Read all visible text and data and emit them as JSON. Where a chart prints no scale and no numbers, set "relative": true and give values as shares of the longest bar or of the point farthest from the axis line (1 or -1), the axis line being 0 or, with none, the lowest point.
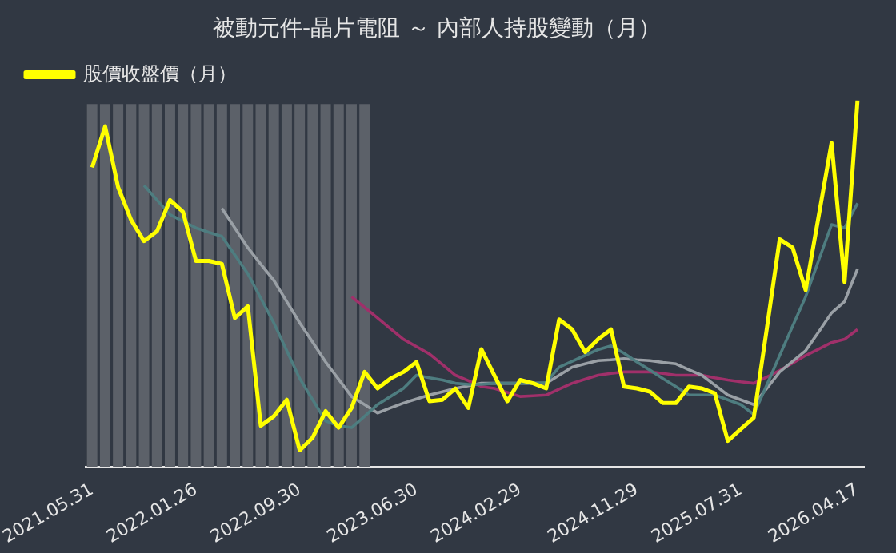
{
  "chart_data": {
    "type": "line",
    "title": "被動元件-晶片電阻 ～ 內部人持股變動（月）",
    "relative": true,
    "legend": "top left",
    "categories": [
      "2021.05.31",
      null,
      null,
      null,
      null,
      null,
      null,
      null,
      "2022.01.26",
      null,
      null,
      null,
      null,
      null,
      null,
      null,
      "2022.09.30",
      null,
      null,
      null,
      null,
      null,
      null,
      null,
      null,
      "2023.06.30",
      null,
      null,
      null,
      null,
      null,
      null,
      null,
      "2024.02.29",
      null,
      null,
      null,
      null,
      null,
      null,
      null,
      null,
      "2024.11.29",
      null,
      null,
      null,
      null,
      null,
      null,
      null,
      "2025.07.31",
      null,
      null,
      null,
      null,
      null,
      null,
      null,
      null,
      "2026.04.17"
    ],
    "series": [
      {
        "type": "bar",
        "color": "#5c6169",
        "values": [
          0.99,
          0.99,
          0.99,
          0.99,
          0.99,
          0.99,
          0.99,
          0.99,
          0.99,
          0.99,
          0.99,
          0.99,
          0.99,
          0.99,
          0.99,
          0.99,
          0.99,
          0.99,
          0.99,
          0.99,
          0.99,
          0.99,
          null,
          null,
          null,
          null,
          null,
          null,
          null,
          null,
          null,
          null,
          null,
          null,
          null,
          null,
          null,
          null,
          null,
          null,
          null,
          null,
          null,
          null,
          null,
          null,
          null,
          null,
          null,
          null,
          null,
          null,
          null,
          null,
          null,
          null,
          null,
          null,
          null,
          null
        ]
      },
      {
        "color": "#a0306a",
        "values": [
          null,
          null,
          null,
          null,
          null,
          null,
          null,
          null,
          null,
          null,
          null,
          null,
          null,
          null,
          null,
          null,
          null,
          null,
          null,
          null,
          0.464,
          0.435,
          0.406,
          0.377,
          0.348,
          0.328,
          0.308,
          0.279,
          0.25,
          0.235,
          0.219,
          0.214,
          0.203,
          0.192,
          0.194,
          0.196,
          0.212,
          0.228,
          0.239,
          0.25,
          0.255,
          0.259,
          0.259,
          0.259,
          0.255,
          0.25,
          0.25,
          0.25,
          0.243,
          0.237,
          0.232,
          0.228,
          0.245,
          0.263,
          0.283,
          0.304,
          0.321,
          0.339,
          0.348,
          0.375
        ]
      },
      {
        "color": "#9aa0a6",
        "values": [
          null,
          null,
          null,
          null,
          null,
          null,
          null,
          null,
          null,
          null,
          0.705,
          0.652,
          0.598,
          0.553,
          0.509,
          0.451,
          0.393,
          0.34,
          0.286,
          0.239,
          0.192,
          0.17,
          0.147,
          0.161,
          0.174,
          0.185,
          0.196,
          0.205,
          0.214,
          0.221,
          0.228,
          0.228,
          0.228,
          0.228,
          0.228,
          0.228,
          0.25,
          0.272,
          0.281,
          0.29,
          0.292,
          0.295,
          0.292,
          0.29,
          0.285,
          0.281,
          0.265,
          0.25,
          0.223,
          0.196,
          0.183,
          0.17,
          0.214,
          0.259,
          0.288,
          0.317,
          0.368,
          0.42,
          0.451,
          0.54
        ]
      },
      {
        "color": "#4e7d80",
        "values": [
          null,
          null,
          null,
          null,
          0.768,
          0.728,
          0.688,
          0.67,
          0.652,
          0.64,
          0.629,
          0.578,
          0.527,
          0.46,
          0.393,
          0.317,
          0.241,
          0.183,
          0.125,
          0.112,
          0.107,
          0.138,
          0.17,
          0.192,
          0.214,
          0.25,
          0.243,
          0.237,
          0.228,
          0.225,
          0.225,
          0.228,
          0.228,
          0.228,
          0.228,
          0.23,
          0.272,
          0.288,
          0.304,
          0.32,
          0.33,
          0.31,
          0.286,
          0.264,
          0.241,
          0.219,
          0.196,
          0.196,
          0.196,
          0.183,
          0.17,
          0.143,
          0.223,
          0.304,
          0.384,
          0.464,
          0.563,
          0.661,
          0.652,
          0.719
        ]
      },
      {
        "name": "股價收盤價（月）",
        "color": "#ffff00",
        "values": [
          0.817,
          0.929,
          0.763,
          0.674,
          0.616,
          0.643,
          0.728,
          0.696,
          0.562,
          0.562,
          0.554,
          0.406,
          0.438,
          0.112,
          0.138,
          0.183,
          0.045,
          0.08,
          0.152,
          0.107,
          0.161,
          0.259,
          0.214,
          0.241,
          0.259,
          0.286,
          0.179,
          0.183,
          0.214,
          0.161,
          0.321,
          0.25,
          0.179,
          0.237,
          0.228,
          0.214,
          0.402,
          0.375,
          0.313,
          0.348,
          0.375,
          0.219,
          0.214,
          0.205,
          0.174,
          0.174,
          0.219,
          0.214,
          0.201,
          0.071,
          0.103,
          0.134,
          0.375,
          0.621,
          0.598,
          0.482,
          0.683,
          0.884,
          0.504,
          1
        ]
      }
    ]
  }
}
